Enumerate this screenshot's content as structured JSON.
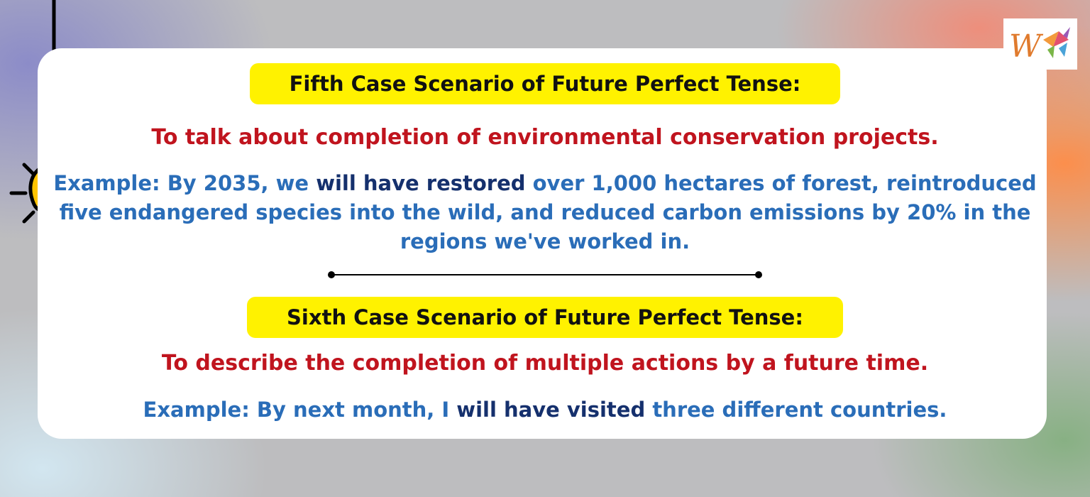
{
  "section1": {
    "heading": "Fifth Case Scenario of Future Perfect Tense:",
    "purpose": "To talk about completion of environmental conservation projects.",
    "example_intro": "Example: By 2035, we ",
    "example_emphasis": "will have restored",
    "example_rest": " over 1,000 hectares of forest, reintroduced five endangered species into the wild, and reduced carbon emissions by 20% in the regions we've worked in."
  },
  "section2": {
    "heading": "Sixth Case Scenario of Future Perfect Tense:",
    "purpose": "To describe the completion of multiple actions by a future time.",
    "example_intro": "Example: By next month, I ",
    "example_emphasis": "will have visited",
    "example_rest": " three different countries."
  },
  "colors": {
    "heading_bg": "#fff200",
    "purpose_text": "#c0141e",
    "example_text": "#2a6db8",
    "example_emphasis": "#15306d",
    "bulb": "#ffc400"
  },
  "icons": {
    "decoration": "light-bulb-icon",
    "brand": "logo-icon",
    "separator": "divider-line"
  }
}
